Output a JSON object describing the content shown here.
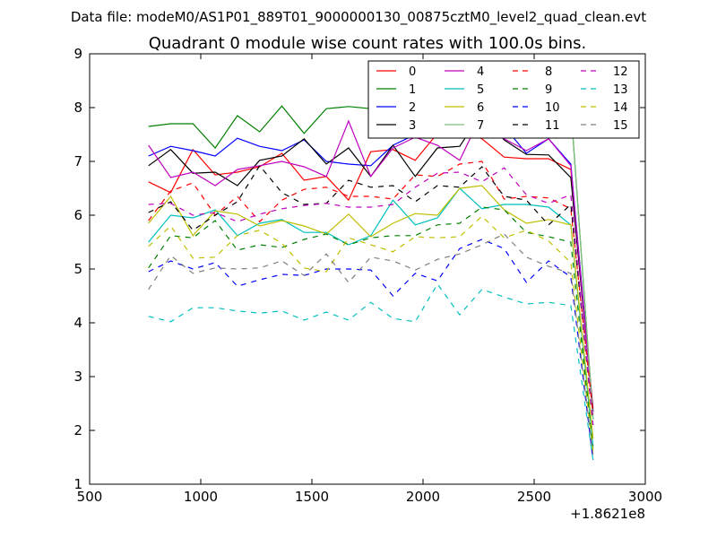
{
  "chart_data": {
    "type": "line",
    "suptitle": "Data file: modeM0/AS1P01_889T01_9000000130_00875cztM0_level2_quad_clean.evt",
    "title": "Quadrant 0 module wise count rates with 100.0s bins.",
    "xlabel": "",
    "ylabel": "",
    "x_offset_label": "+1.8621e8",
    "xlim": [
      500,
      3000
    ],
    "ylim": [
      1,
      9
    ],
    "xticks": [
      "500",
      "1000",
      "1500",
      "2000",
      "2500",
      "3000"
    ],
    "yticks": [
      "1",
      "2",
      "3",
      "4",
      "5",
      "6",
      "7",
      "8",
      "9"
    ],
    "legend_position": "top-right",
    "x": [
      765,
      865,
      965,
      1065,
      1165,
      1265,
      1365,
      1465,
      1565,
      1665,
      1765,
      1865,
      1965,
      2065,
      2165,
      2265,
      2365,
      2465,
      2565,
      2665,
      2765
    ],
    "series": [
      {
        "name": "0",
        "color": "#ff0000",
        "dash": "solid",
        "values": [
          6.62,
          6.42,
          7.22,
          6.75,
          6.8,
          6.9,
          7.15,
          6.65,
          6.72,
          6.28,
          7.18,
          7.22,
          7.02,
          7.52,
          7.58,
          7.42,
          7.08,
          7.05,
          7.05,
          6.85,
          2.4
        ]
      },
      {
        "name": "1",
        "color": "#008000",
        "dash": "solid",
        "values": [
          7.65,
          7.7,
          7.7,
          7.25,
          7.85,
          7.55,
          8.03,
          7.52,
          7.98,
          8.02,
          7.98,
          7.48,
          7.72,
          8.12,
          7.82,
          7.65,
          7.52,
          7.52,
          7.48,
          8.02,
          2.22
        ]
      },
      {
        "name": "2",
        "color": "#0000ff",
        "dash": "solid",
        "values": [
          7.1,
          7.28,
          7.2,
          7.1,
          7.43,
          7.28,
          7.2,
          7.4,
          7.0,
          6.95,
          6.92,
          7.3,
          7.5,
          8.2,
          7.62,
          8.15,
          7.65,
          7.15,
          7.42,
          6.95,
          2.35
        ]
      },
      {
        "name": "3",
        "color": "#000000",
        "dash": "solid",
        "values": [
          6.92,
          7.22,
          6.78,
          6.8,
          6.55,
          7.02,
          7.1,
          7.42,
          6.95,
          7.25,
          6.72,
          7.3,
          6.72,
          7.25,
          7.28,
          7.9,
          7.4,
          7.13,
          7.12,
          6.7,
          2.35
        ]
      },
      {
        "name": "4",
        "color": "#bf00bf",
        "dash": "solid",
        "values": [
          7.3,
          6.7,
          6.8,
          6.55,
          6.85,
          6.92,
          7.0,
          6.9,
          6.72,
          7.75,
          6.72,
          7.25,
          7.45,
          7.3,
          7.02,
          7.88,
          7.42,
          7.2,
          7.42,
          6.92,
          2.3
        ]
      },
      {
        "name": "5",
        "color": "#00bfbf",
        "dash": "solid",
        "values": [
          5.5,
          6.0,
          5.95,
          6.1,
          5.62,
          5.85,
          5.92,
          5.68,
          5.68,
          5.45,
          5.62,
          6.28,
          5.82,
          5.95,
          6.5,
          6.12,
          6.2,
          6.2,
          6.15,
          5.82,
          1.7
        ]
      },
      {
        "name": "6",
        "color": "#bfbf00",
        "dash": "solid",
        "values": [
          5.85,
          6.35,
          5.62,
          6.08,
          6.02,
          5.8,
          5.9,
          5.8,
          5.65,
          6.02,
          5.6,
          5.85,
          6.03,
          6.0,
          6.5,
          6.55,
          6.1,
          5.85,
          5.92,
          5.82,
          1.85
        ]
      },
      {
        "name": "7",
        "color": "#7fbf7f",
        "dash": "solid",
        "values": [
          null,
          null,
          null,
          null,
          null,
          null,
          null,
          null,
          null,
          null,
          null,
          7.52,
          7.95,
          8.2,
          8.12,
          8.42,
          8.25,
          7.6,
          7.52,
          8.0,
          2.2
        ]
      },
      {
        "name": "8",
        "color": "#ff0000",
        "dash": "dashed",
        "values": [
          5.9,
          6.45,
          6.6,
          6.0,
          6.35,
          5.88,
          6.28,
          6.48,
          6.52,
          6.35,
          6.35,
          6.3,
          6.75,
          6.72,
          6.95,
          7.0,
          6.3,
          6.35,
          6.32,
          6.12,
          2.3
        ]
      },
      {
        "name": "9",
        "color": "#008000",
        "dash": "dashed",
        "values": [
          5.02,
          5.62,
          5.58,
          5.9,
          5.35,
          5.45,
          5.4,
          5.55,
          5.65,
          5.45,
          5.58,
          5.62,
          5.62,
          5.82,
          5.85,
          6.15,
          6.1,
          5.68,
          5.6,
          5.5,
          1.65
        ]
      },
      {
        "name": "10",
        "color": "#0000ff",
        "dash": "dashed",
        "values": [
          4.95,
          5.15,
          5.0,
          5.12,
          4.68,
          4.8,
          4.9,
          4.88,
          5.0,
          5.0,
          4.98,
          4.5,
          4.92,
          4.78,
          5.38,
          5.55,
          5.38,
          4.75,
          5.15,
          4.85,
          1.45
        ]
      },
      {
        "name": "11",
        "color": "#000000",
        "dash": "dashed",
        "values": [
          6.05,
          6.25,
          5.72,
          6.0,
          6.25,
          6.92,
          6.42,
          6.2,
          6.22,
          6.65,
          6.52,
          6.55,
          6.25,
          6.55,
          6.52,
          6.9,
          6.35,
          6.28,
          5.82,
          6.2,
          2.1
        ]
      },
      {
        "name": "12",
        "color": "#bf00bf",
        "dash": "dashed",
        "values": [
          6.2,
          6.22,
          6.0,
          6.05,
          5.88,
          6.02,
          6.12,
          6.18,
          6.22,
          6.15,
          6.15,
          6.2,
          6.52,
          6.78,
          6.8,
          6.62,
          6.88,
          6.38,
          6.22,
          6.38,
          2.1
        ]
      },
      {
        "name": "13",
        "color": "#00bfbf",
        "dash": "dashed",
        "values": [
          4.12,
          4.02,
          4.28,
          4.28,
          4.22,
          4.18,
          4.22,
          4.05,
          4.2,
          4.05,
          4.38,
          4.08,
          4.02,
          4.72,
          4.15,
          4.62,
          4.48,
          4.35,
          4.38,
          4.32,
          1.45
        ]
      },
      {
        "name": "14",
        "color": "#bfbf00",
        "dash": "dashed",
        "values": [
          5.42,
          5.8,
          5.2,
          5.22,
          5.62,
          5.72,
          5.48,
          5.02,
          4.95,
          5.58,
          5.45,
          5.32,
          5.6,
          5.58,
          5.6,
          5.98,
          5.58,
          5.72,
          5.52,
          5.12,
          1.6
        ]
      },
      {
        "name": "15",
        "color": "#7f7f7f",
        "dash": "dashed",
        "values": [
          4.62,
          5.25,
          4.92,
          5.02,
          5.0,
          5.02,
          5.15,
          4.88,
          5.28,
          4.75,
          5.22,
          5.15,
          4.98,
          5.18,
          5.28,
          5.45,
          5.65,
          5.22,
          5.05,
          4.92,
          1.55
        ]
      }
    ]
  }
}
